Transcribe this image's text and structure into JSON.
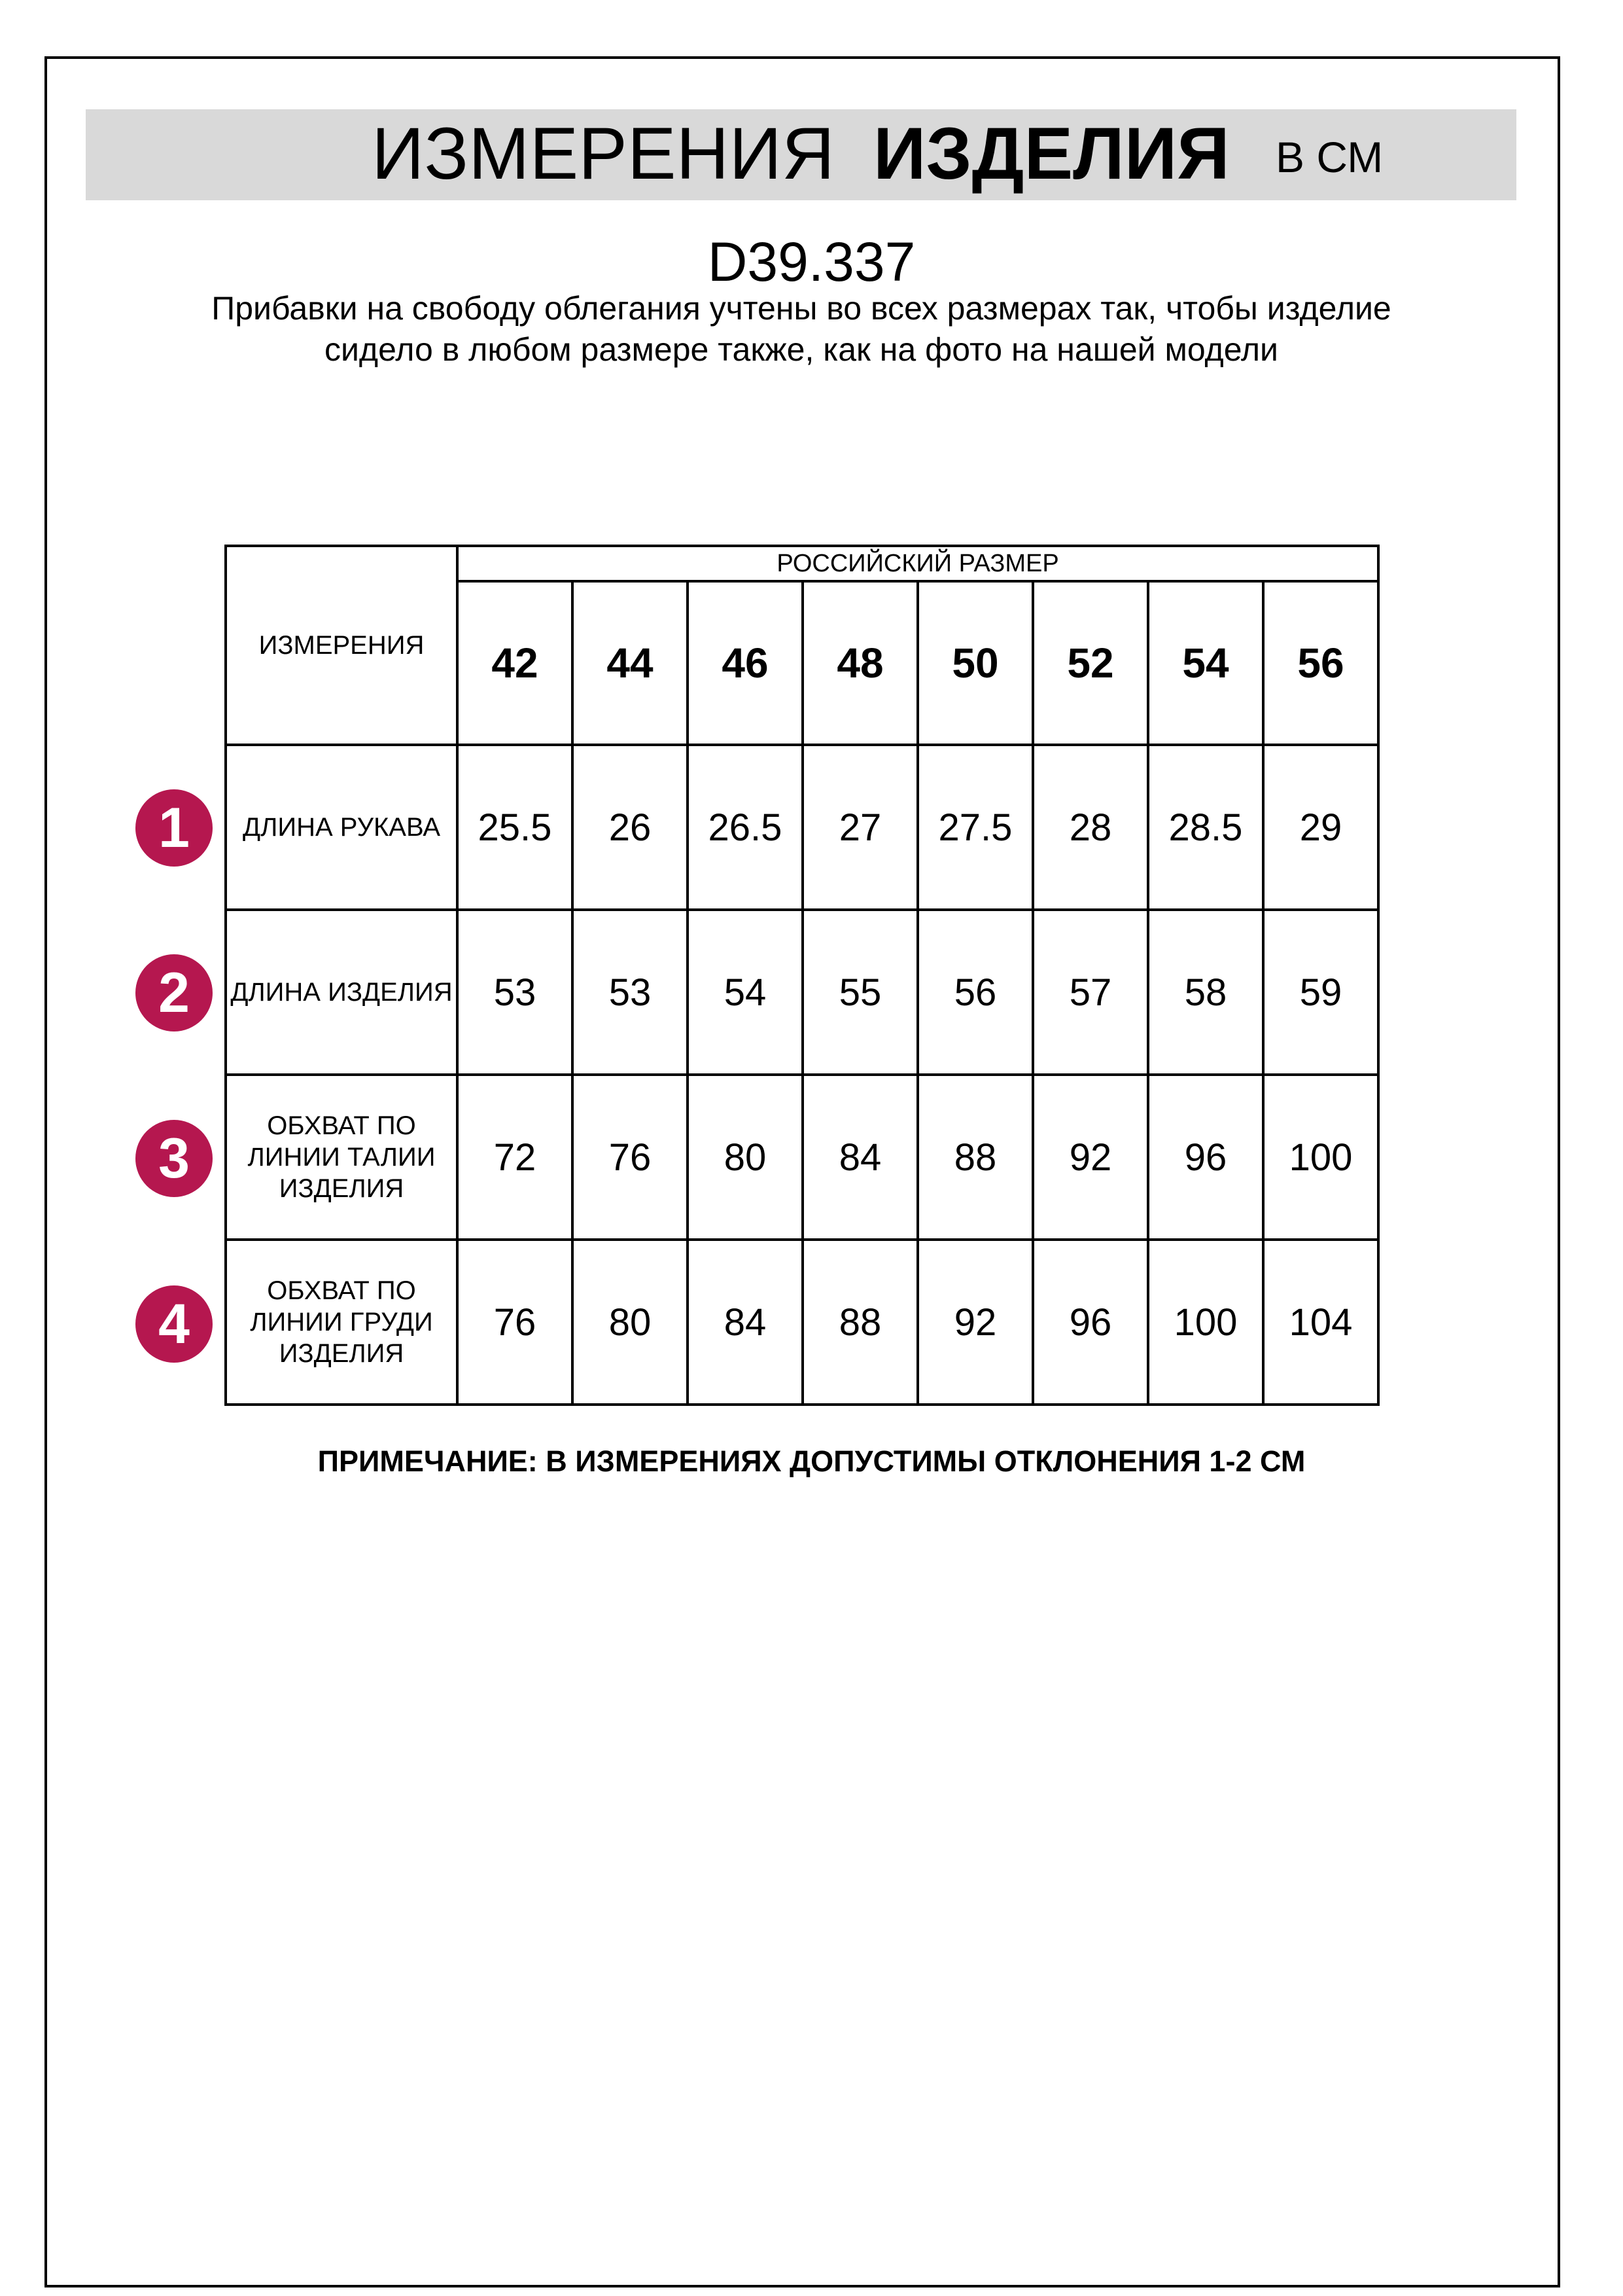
{
  "header": {
    "title_regular": "ИЗМЕРЕНИЯ",
    "title_bold": "ИЗДЕЛИЯ",
    "unit": "В СМ"
  },
  "product_code": "D39.337",
  "description": "Прибавки на свободу облегания учтены во всех размерах так, чтобы изделие сидело в любом размере также, как на фото на нашей модели",
  "table": {
    "measurements_header": "ИЗМЕРЕНИЯ",
    "size_group_header": "РОССИЙСКИЙ РАЗМЕР",
    "sizes": [
      "42",
      "44",
      "46",
      "48",
      "50",
      "52",
      "54",
      "56"
    ],
    "rows": [
      {
        "number": "1",
        "label": "ДЛИНА РУКАВА",
        "values": [
          "25.5",
          "26",
          "26.5",
          "27",
          "27.5",
          "28",
          "28.5",
          "29"
        ]
      },
      {
        "number": "2",
        "label": "ДЛИНА ИЗДЕЛИЯ",
        "values": [
          "53",
          "53",
          "54",
          "55",
          "56",
          "57",
          "58",
          "59"
        ]
      },
      {
        "number": "3",
        "label": "ОБХВАТ ПО ЛИНИИ ТАЛИИ ИЗДЕЛИЯ",
        "values": [
          "72",
          "76",
          "80",
          "84",
          "88",
          "92",
          "96",
          "100"
        ]
      },
      {
        "number": "4",
        "label": "ОБХВАТ ПО ЛИНИИ ГРУДИ ИЗДЕЛИЯ",
        "values": [
          "76",
          "80",
          "84",
          "88",
          "92",
          "96",
          "100",
          "104"
        ]
      }
    ]
  },
  "note": "ПРИМЕЧАНИЕ: В ИЗМЕРЕНИЯХ ДОПУСТИМЫ ОТКЛОНЕНИЯ 1-2 СМ",
  "colors": {
    "header_bar": "#d9d9d9",
    "row_marker": "#b5174f"
  }
}
